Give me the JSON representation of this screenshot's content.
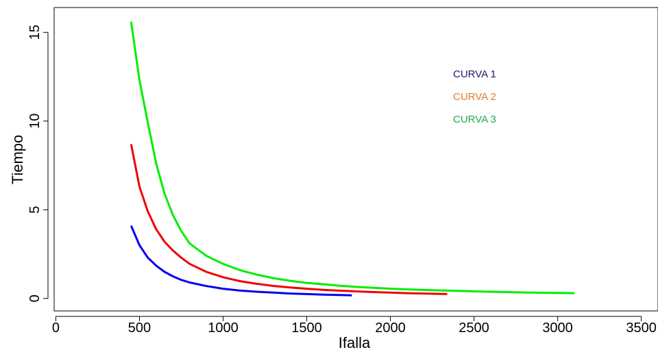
{
  "chart_data": {
    "type": "line",
    "title": "",
    "xlabel": "Ifalla",
    "ylabel": "Tiempo",
    "xlim": [
      -10,
      3600
    ],
    "ylim": [
      -0.7,
      16.4
    ],
    "xticks": [
      0,
      500,
      1000,
      1500,
      2000,
      2500,
      3000,
      3500
    ],
    "yticks": [
      0,
      5,
      10,
      15
    ],
    "grid": false,
    "legend_placement": "top-right",
    "series": [
      {
        "name": "CURVA 1",
        "line_color": "#0000ee",
        "label_color": "#1a1a70",
        "x": [
          450,
          500,
          550,
          600,
          650,
          700,
          750,
          800,
          900,
          1000,
          1100,
          1200,
          1300,
          1400,
          1500,
          1600,
          1770
        ],
        "y": [
          4.1,
          3.0,
          2.3,
          1.85,
          1.5,
          1.25,
          1.05,
          0.9,
          0.7,
          0.55,
          0.45,
          0.38,
          0.33,
          0.28,
          0.25,
          0.22,
          0.18
        ]
      },
      {
        "name": "CURVA 2",
        "line_color": "#ee0000",
        "label_color": "#e07b28",
        "x": [
          450,
          500,
          550,
          600,
          650,
          700,
          750,
          800,
          900,
          1000,
          1100,
          1200,
          1300,
          1400,
          1500,
          1600,
          1700,
          1800,
          1900,
          2000,
          2100,
          2200,
          2340
        ],
        "y": [
          8.7,
          6.3,
          4.9,
          3.9,
          3.2,
          2.7,
          2.3,
          1.95,
          1.5,
          1.2,
          0.98,
          0.83,
          0.71,
          0.62,
          0.55,
          0.49,
          0.44,
          0.4,
          0.36,
          0.33,
          0.3,
          0.28,
          0.25
        ]
      },
      {
        "name": "CURVA 3",
        "line_color": "#00ee00",
        "label_color": "#1fa84a",
        "x": [
          450,
          500,
          550,
          600,
          650,
          700,
          750,
          800,
          900,
          1000,
          1100,
          1200,
          1300,
          1400,
          1500,
          1600,
          1700,
          1800,
          1900,
          2000,
          2200,
          2400,
          2600,
          2800,
          3000,
          3100
        ],
        "y": [
          15.6,
          12.3,
          9.9,
          7.6,
          5.9,
          4.7,
          3.8,
          3.1,
          2.4,
          1.95,
          1.6,
          1.35,
          1.15,
          1.0,
          0.88,
          0.8,
          0.72,
          0.65,
          0.6,
          0.55,
          0.48,
          0.43,
          0.38,
          0.34,
          0.31,
          0.3
        ]
      }
    ]
  }
}
